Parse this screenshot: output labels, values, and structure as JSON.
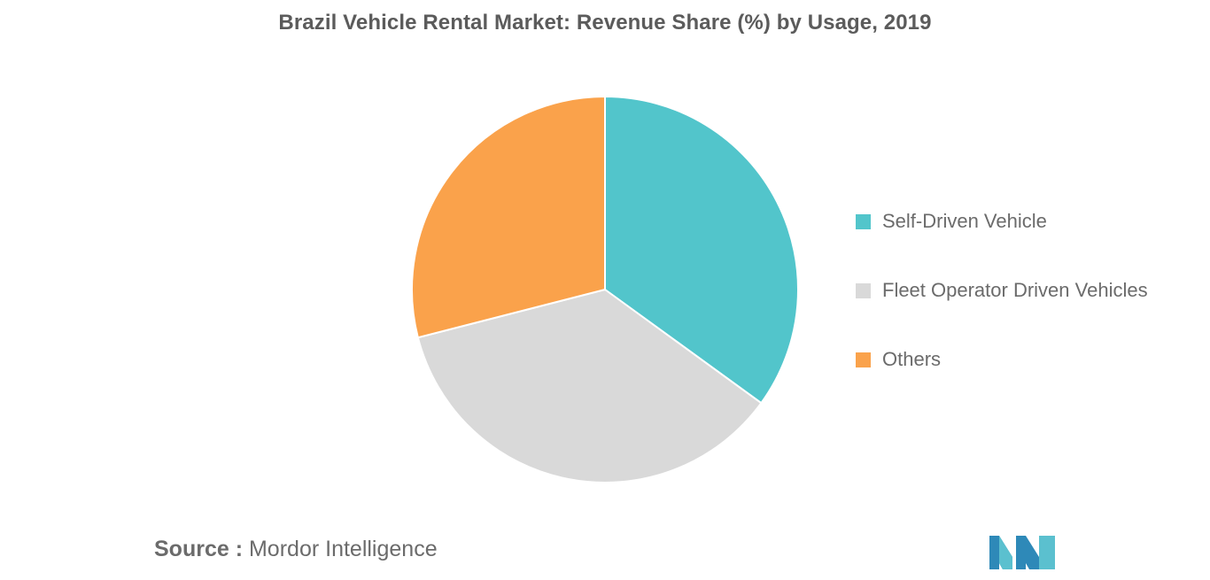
{
  "chart_data": {
    "type": "pie",
    "title": "Brazil Vehicle Rental Market: Revenue Share (%) by Usage, 2019",
    "categories": [
      "Self-Driven Vehicle",
      "Fleet Operator Driven Vehicles",
      "Others"
    ],
    "values": [
      35,
      36,
      29
    ],
    "colors": [
      "#52c5cb",
      "#d9d9d9",
      "#faa24b"
    ],
    "start_angle_deg": 0,
    "direction": "clockwise",
    "legend_position": "right"
  },
  "source": {
    "prefix": "Source :",
    "name": "Mordor Intelligence"
  },
  "logo": {
    "icon": "mordor-intelligence-logo-icon",
    "colors": [
      "#2e89b8",
      "#5bc0cf"
    ]
  }
}
